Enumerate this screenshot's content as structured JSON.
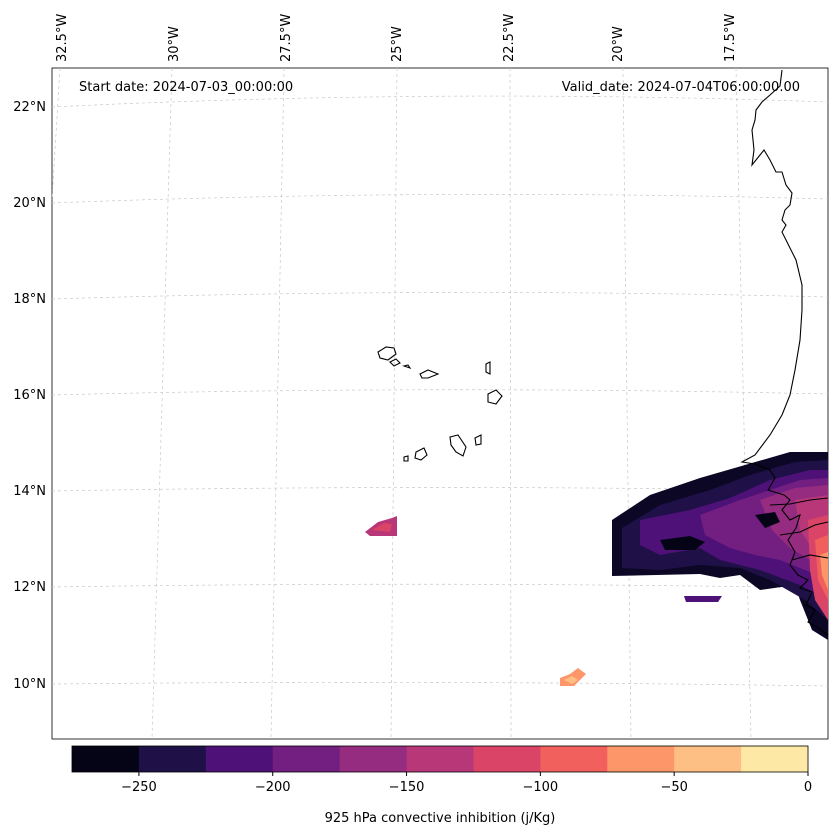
{
  "map": {
    "start_date": "Start date: 2024-07-03_00:00:00",
    "valid_date": "Valid_date: 2024-07-04T06:00:00.00",
    "lon_ticks": [
      "32.5°W",
      "30°W",
      "27.5°W",
      "25°W",
      "22.5°W",
      "20°W",
      "17.5°W"
    ],
    "lat_ticks": [
      "22°N",
      "20°N",
      "18°N",
      "16°N",
      "14°N",
      "12°N",
      "10°N"
    ]
  },
  "colorbar": {
    "label": "925 hPa convective inhibition (j/Kg)",
    "levels": [
      -275,
      -250,
      -225,
      -200,
      -175,
      -150,
      -125,
      -100,
      -75,
      -50,
      -25,
      0
    ],
    "tick_values": [
      -250,
      -200,
      -150,
      -100,
      -50,
      0
    ],
    "tick_labels": [
      "−250",
      "−200",
      "−150",
      "−100",
      "−50",
      "0"
    ],
    "colors": [
      "#050417",
      "#1f1147",
      "#4e1177",
      "#721f81",
      "#952c80",
      "#b73779",
      "#da4466",
      "#f1605d",
      "#fd9668",
      "#febf84",
      "#fde8a5"
    ]
  }
}
